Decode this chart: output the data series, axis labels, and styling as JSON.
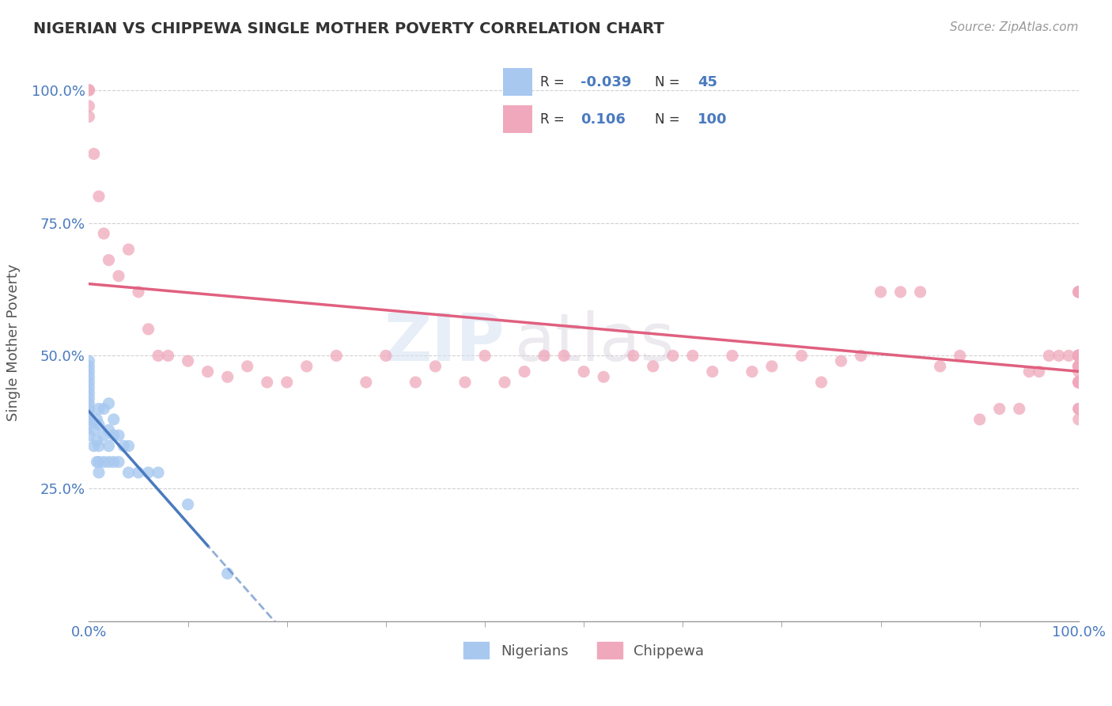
{
  "title": "NIGERIAN VS CHIPPEWA SINGLE MOTHER POVERTY CORRELATION CHART",
  "source": "Source: ZipAtlas.com",
  "ylabel": "Single Mother Poverty",
  "blue_color": "#a8c8f0",
  "pink_color": "#f0a8bc",
  "blue_line_color": "#4a7abf",
  "pink_line_color": "#e06080",
  "watermark_zip": "ZIP",
  "watermark_atlas": "atlas",
  "nigerians_x": [
    0.0,
    0.0,
    0.0,
    0.0,
    0.0,
    0.0,
    0.0,
    0.0,
    0.0,
    0.0,
    0.0,
    0.0,
    0.0,
    0.0,
    0.0,
    0.005,
    0.005,
    0.008,
    0.008,
    0.008,
    0.01,
    0.01,
    0.01,
    0.01,
    0.01,
    0.015,
    0.015,
    0.015,
    0.02,
    0.02,
    0.02,
    0.02,
    0.025,
    0.025,
    0.025,
    0.03,
    0.03,
    0.035,
    0.04,
    0.04,
    0.05,
    0.06,
    0.07,
    0.1,
    0.14
  ],
  "nigerians_y": [
    0.35,
    0.37,
    0.38,
    0.38,
    0.39,
    0.4,
    0.41,
    0.42,
    0.43,
    0.44,
    0.45,
    0.46,
    0.47,
    0.48,
    0.49,
    0.33,
    0.36,
    0.3,
    0.34,
    0.38,
    0.28,
    0.3,
    0.33,
    0.37,
    0.4,
    0.3,
    0.35,
    0.4,
    0.3,
    0.33,
    0.36,
    0.41,
    0.3,
    0.35,
    0.38,
    0.3,
    0.35,
    0.33,
    0.28,
    0.33,
    0.28,
    0.28,
    0.28,
    0.22,
    0.09
  ],
  "chippewa_x": [
    0.0,
    0.0,
    0.0,
    0.0,
    0.005,
    0.01,
    0.015,
    0.02,
    0.03,
    0.04,
    0.05,
    0.06,
    0.07,
    0.08,
    0.1,
    0.12,
    0.14,
    0.16,
    0.18,
    0.2,
    0.22,
    0.25,
    0.28,
    0.3,
    0.33,
    0.35,
    0.38,
    0.4,
    0.42,
    0.44,
    0.46,
    0.48,
    0.5,
    0.52,
    0.55,
    0.57,
    0.59,
    0.61,
    0.63,
    0.65,
    0.67,
    0.69,
    0.72,
    0.74,
    0.76,
    0.78,
    0.8,
    0.82,
    0.84,
    0.86,
    0.88,
    0.9,
    0.92,
    0.94,
    0.95,
    0.96,
    0.97,
    0.98,
    0.99,
    1.0,
    1.0,
    1.0,
    1.0,
    1.0,
    1.0,
    1.0,
    1.0,
    1.0,
    1.0,
    1.0,
    1.0,
    1.0,
    1.0,
    1.0,
    1.0,
    1.0,
    1.0,
    1.0,
    1.0,
    1.0,
    1.0,
    1.0,
    1.0,
    1.0,
    1.0,
    1.0,
    1.0,
    1.0,
    1.0,
    1.0,
    1.0,
    1.0,
    1.0,
    1.0,
    1.0,
    1.0,
    1.0,
    1.0,
    1.0,
    1.0
  ],
  "chippewa_y": [
    1.0,
    1.0,
    0.97,
    0.95,
    0.88,
    0.8,
    0.73,
    0.68,
    0.65,
    0.7,
    0.62,
    0.55,
    0.5,
    0.5,
    0.49,
    0.47,
    0.46,
    0.48,
    0.45,
    0.45,
    0.48,
    0.5,
    0.45,
    0.5,
    0.45,
    0.48,
    0.45,
    0.5,
    0.45,
    0.47,
    0.5,
    0.5,
    0.47,
    0.46,
    0.5,
    0.48,
    0.5,
    0.5,
    0.47,
    0.5,
    0.47,
    0.48,
    0.5,
    0.45,
    0.49,
    0.5,
    0.62,
    0.62,
    0.62,
    0.48,
    0.5,
    0.38,
    0.4,
    0.4,
    0.47,
    0.47,
    0.5,
    0.5,
    0.5,
    0.5,
    0.5,
    0.48,
    0.62,
    0.5,
    0.45,
    0.5,
    0.47,
    0.45,
    0.5,
    0.5,
    0.5,
    0.48,
    0.48,
    0.48,
    0.5,
    0.48,
    0.5,
    0.48,
    0.62,
    0.38,
    0.45,
    0.5,
    0.5,
    0.45,
    0.5,
    0.48,
    0.5,
    0.62,
    0.5,
    0.4,
    0.5,
    0.45,
    0.48,
    0.48,
    0.5,
    0.4,
    0.45,
    0.48,
    0.62,
    0.5
  ],
  "ylim": [
    0.0,
    1.05
  ],
  "xlim": [
    0.0,
    1.0
  ],
  "yticks": [
    0.25,
    0.5,
    0.75,
    1.0
  ],
  "ytick_labels": [
    "25.0%",
    "50.0%",
    "75.0%",
    "100.0%"
  ],
  "xtick_left": "0.0%",
  "xtick_right": "100.0%",
  "nig_r": "-0.039",
  "nig_n": "45",
  "chip_r": "0.106",
  "chip_n": "100"
}
